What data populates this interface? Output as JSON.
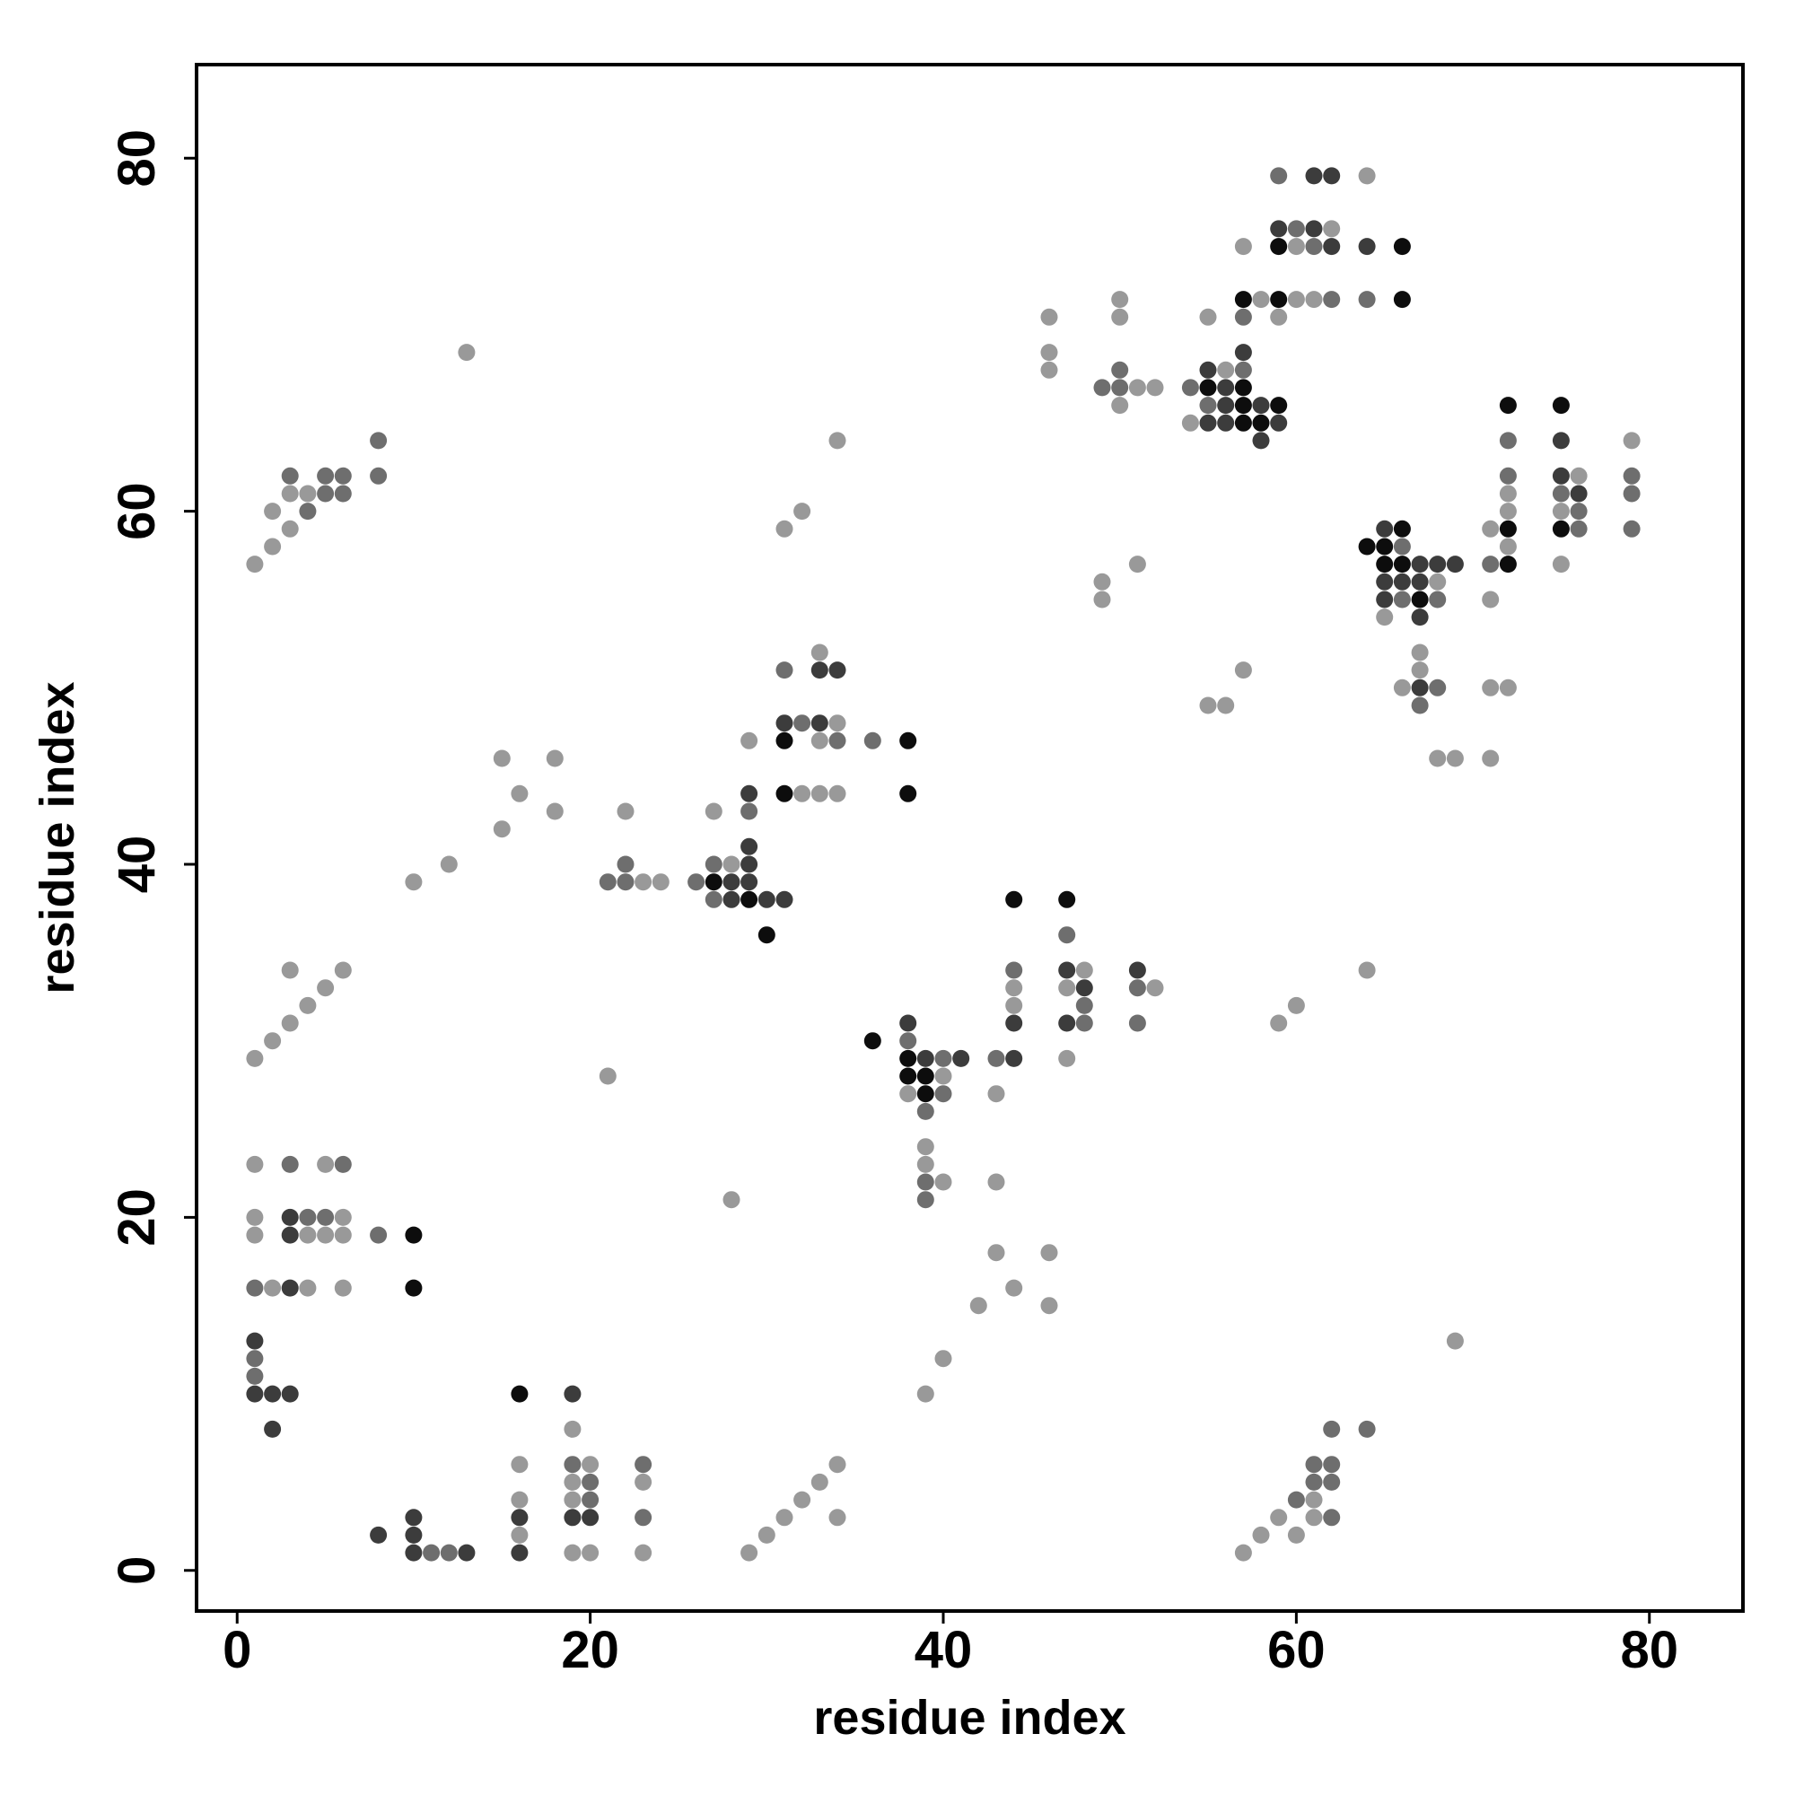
{
  "chart_data": {
    "type": "scatter",
    "title": "",
    "xlabel": "residue index",
    "ylabel": "residue index",
    "xlim": [
      -2.3,
      85.3
    ],
    "ylim": [
      -2.3,
      85.3
    ],
    "xticks": [
      0,
      20,
      40,
      60,
      80
    ],
    "yticks": [
      0,
      20,
      40,
      60,
      80
    ],
    "grid": false,
    "legend": "none",
    "colors": {
      "level1": "#999999",
      "level2": "#6e6e6e",
      "level3": "#3c3c3c",
      "level4": "#0d0d0d"
    },
    "points": [
      [
        1,
        57,
        1
      ],
      [
        2,
        58,
        1
      ],
      [
        2,
        60,
        1
      ],
      [
        3,
        59,
        1
      ],
      [
        3,
        61,
        1
      ],
      [
        3,
        62,
        2
      ],
      [
        4,
        60,
        2
      ],
      [
        4,
        61,
        1
      ],
      [
        5,
        61,
        2
      ],
      [
        5,
        62,
        2
      ],
      [
        6,
        61,
        2
      ],
      [
        6,
        62,
        2
      ],
      [
        8,
        62,
        2
      ],
      [
        8,
        64,
        2
      ],
      [
        1,
        29,
        1
      ],
      [
        2,
        30,
        1
      ],
      [
        3,
        31,
        1
      ],
      [
        3,
        34,
        1
      ],
      [
        4,
        32,
        1
      ],
      [
        5,
        33,
        1
      ],
      [
        6,
        34,
        1
      ],
      [
        1,
        23,
        1
      ],
      [
        1,
        20,
        1
      ],
      [
        1,
        19,
        1
      ],
      [
        1,
        16,
        2
      ],
      [
        2,
        16,
        1
      ],
      [
        3,
        23,
        2
      ],
      [
        3,
        20,
        3
      ],
      [
        3,
        19,
        3
      ],
      [
        3,
        16,
        3
      ],
      [
        4,
        20,
        2
      ],
      [
        4,
        19,
        1
      ],
      [
        4,
        16,
        1
      ],
      [
        5,
        23,
        1
      ],
      [
        5,
        20,
        2
      ],
      [
        5,
        19,
        1
      ],
      [
        6,
        23,
        2
      ],
      [
        6,
        20,
        1
      ],
      [
        6,
        19,
        1
      ],
      [
        6,
        16,
        1
      ],
      [
        8,
        19,
        2
      ],
      [
        10,
        19,
        4
      ],
      [
        10,
        16,
        4
      ],
      [
        1,
        13,
        3
      ],
      [
        1,
        12,
        2
      ],
      [
        1,
        11,
        2
      ],
      [
        1,
        10,
        3
      ],
      [
        2,
        10,
        3
      ],
      [
        2,
        8,
        3
      ],
      [
        3,
        10,
        3
      ],
      [
        8,
        2,
        3
      ],
      [
        10,
        3,
        3
      ],
      [
        10,
        2,
        3
      ],
      [
        10,
        1,
        3
      ],
      [
        11,
        1,
        2
      ],
      [
        12,
        1,
        2
      ],
      [
        13,
        1,
        3
      ],
      [
        16,
        10,
        4
      ],
      [
        16,
        6,
        1
      ],
      [
        16,
        4,
        1
      ],
      [
        16,
        3,
        3
      ],
      [
        16,
        2,
        1
      ],
      [
        16,
        1,
        3
      ],
      [
        19,
        10,
        3
      ],
      [
        19,
        8,
        1
      ],
      [
        19,
        6,
        2
      ],
      [
        19,
        5,
        1
      ],
      [
        19,
        4,
        1
      ],
      [
        19,
        3,
        3
      ],
      [
        19,
        1,
        1
      ],
      [
        20,
        6,
        1
      ],
      [
        20,
        5,
        2
      ],
      [
        20,
        4,
        2
      ],
      [
        20,
        3,
        3
      ],
      [
        20,
        1,
        1
      ],
      [
        23,
        6,
        2
      ],
      [
        23,
        5,
        1
      ],
      [
        23,
        3,
        2
      ],
      [
        23,
        1,
        1
      ],
      [
        29,
        1,
        1
      ],
      [
        30,
        2,
        1
      ],
      [
        31,
        3,
        1
      ],
      [
        32,
        4,
        1
      ],
      [
        33,
        5,
        1
      ],
      [
        34,
        6,
        1
      ],
      [
        34,
        3,
        1
      ],
      [
        13,
        69,
        1
      ],
      [
        10,
        39,
        1
      ],
      [
        12,
        40,
        1
      ],
      [
        15,
        46,
        1
      ],
      [
        15,
        42,
        1
      ],
      [
        16,
        44,
        1
      ],
      [
        18,
        46,
        1
      ],
      [
        18,
        43,
        1
      ],
      [
        21,
        28,
        1
      ],
      [
        28,
        21,
        1
      ],
      [
        21,
        39,
        2
      ],
      [
        22,
        43,
        1
      ],
      [
        22,
        40,
        2
      ],
      [
        22,
        39,
        2
      ],
      [
        23,
        39,
        1
      ],
      [
        24,
        39,
        1
      ],
      [
        26,
        39,
        2
      ],
      [
        27,
        43,
        1
      ],
      [
        27,
        40,
        2
      ],
      [
        27,
        39,
        4
      ],
      [
        27,
        38,
        2
      ],
      [
        28,
        40,
        1
      ],
      [
        28,
        39,
        3
      ],
      [
        28,
        38,
        3
      ],
      [
        29,
        44,
        3
      ],
      [
        29,
        43,
        2
      ],
      [
        29,
        41,
        3
      ],
      [
        29,
        40,
        3
      ],
      [
        29,
        39,
        3
      ],
      [
        29,
        38,
        4
      ],
      [
        30,
        38,
        3
      ],
      [
        30,
        36,
        4
      ],
      [
        31,
        38,
        3
      ],
      [
        29,
        47,
        1
      ],
      [
        31,
        51,
        2
      ],
      [
        31,
        48,
        3
      ],
      [
        31,
        47,
        4
      ],
      [
        31,
        44,
        4
      ],
      [
        32,
        48,
        2
      ],
      [
        32,
        44,
        1
      ],
      [
        33,
        52,
        1
      ],
      [
        33,
        51,
        3
      ],
      [
        33,
        48,
        3
      ],
      [
        33,
        47,
        1
      ],
      [
        33,
        44,
        1
      ],
      [
        34,
        51,
        3
      ],
      [
        34,
        48,
        1
      ],
      [
        34,
        47,
        2
      ],
      [
        34,
        44,
        1
      ],
      [
        34,
        64,
        1
      ],
      [
        31,
        59,
        1
      ],
      [
        32,
        60,
        1
      ],
      [
        36,
        47,
        2
      ],
      [
        38,
        47,
        4
      ],
      [
        38,
        44,
        4
      ],
      [
        36,
        30,
        4
      ],
      [
        38,
        31,
        3
      ],
      [
        38,
        30,
        2
      ],
      [
        38,
        29,
        4
      ],
      [
        38,
        28,
        4
      ],
      [
        38,
        27,
        1
      ],
      [
        39,
        29,
        3
      ],
      [
        39,
        28,
        4
      ],
      [
        39,
        27,
        4
      ],
      [
        39,
        26,
        2
      ],
      [
        40,
        29,
        2
      ],
      [
        40,
        28,
        1
      ],
      [
        40,
        27,
        2
      ],
      [
        41,
        29,
        3
      ],
      [
        39,
        24,
        1
      ],
      [
        39,
        23,
        1
      ],
      [
        39,
        22,
        2
      ],
      [
        39,
        21,
        2
      ],
      [
        40,
        22,
        1
      ],
      [
        43,
        27,
        1
      ],
      [
        43,
        22,
        1
      ],
      [
        43,
        29,
        2
      ],
      [
        39,
        10,
        1
      ],
      [
        40,
        12,
        1
      ],
      [
        42,
        15,
        1
      ],
      [
        43,
        18,
        1
      ],
      [
        44,
        16,
        1
      ],
      [
        46,
        18,
        1
      ],
      [
        46,
        15,
        1
      ],
      [
        44,
        38,
        4
      ],
      [
        44,
        34,
        2
      ],
      [
        44,
        33,
        1
      ],
      [
        44,
        32,
        1
      ],
      [
        44,
        31,
        3
      ],
      [
        44,
        29,
        3
      ],
      [
        47,
        38,
        4
      ],
      [
        47,
        36,
        2
      ],
      [
        47,
        34,
        3
      ],
      [
        47,
        33,
        1
      ],
      [
        47,
        31,
        3
      ],
      [
        47,
        29,
        1
      ],
      [
        48,
        34,
        1
      ],
      [
        48,
        33,
        3
      ],
      [
        48,
        32,
        2
      ],
      [
        48,
        31,
        2
      ],
      [
        51,
        34,
        3
      ],
      [
        51,
        33,
        2
      ],
      [
        51,
        31,
        2
      ],
      [
        52,
        33,
        1
      ],
      [
        46,
        71,
        1
      ],
      [
        46,
        69,
        1
      ],
      [
        46,
        68,
        1
      ],
      [
        49,
        67,
        2
      ],
      [
        49,
        56,
        1
      ],
      [
        49,
        55,
        1
      ],
      [
        50,
        72,
        1
      ],
      [
        50,
        71,
        1
      ],
      [
        50,
        68,
        2
      ],
      [
        50,
        67,
        2
      ],
      [
        50,
        66,
        1
      ],
      [
        51,
        67,
        1
      ],
      [
        51,
        57,
        1
      ],
      [
        52,
        67,
        1
      ],
      [
        54,
        67,
        2
      ],
      [
        54,
        65,
        1
      ],
      [
        55,
        71,
        1
      ],
      [
        55,
        68,
        3
      ],
      [
        55,
        67,
        4
      ],
      [
        55,
        66,
        2
      ],
      [
        55,
        65,
        3
      ],
      [
        55,
        49,
        1
      ],
      [
        56,
        68,
        1
      ],
      [
        56,
        67,
        3
      ],
      [
        56,
        66,
        3
      ],
      [
        56,
        65,
        3
      ],
      [
        56,
        49,
        1
      ],
      [
        57,
        75,
        1
      ],
      [
        57,
        72,
        4
      ],
      [
        57,
        71,
        2
      ],
      [
        57,
        69,
        3
      ],
      [
        57,
        68,
        2
      ],
      [
        57,
        67,
        4
      ],
      [
        57,
        66,
        4
      ],
      [
        57,
        65,
        4
      ],
      [
        57,
        51,
        1
      ],
      [
        58,
        72,
        1
      ],
      [
        58,
        66,
        3
      ],
      [
        58,
        65,
        4
      ],
      [
        58,
        64,
        3
      ],
      [
        59,
        79,
        2
      ],
      [
        59,
        76,
        3
      ],
      [
        59,
        75,
        4
      ],
      [
        59,
        72,
        4
      ],
      [
        59,
        71,
        1
      ],
      [
        59,
        66,
        4
      ],
      [
        59,
        65,
        3
      ],
      [
        60,
        76,
        2
      ],
      [
        60,
        75,
        1
      ],
      [
        60,
        72,
        1
      ],
      [
        61,
        79,
        3
      ],
      [
        61,
        76,
        3
      ],
      [
        61,
        75,
        2
      ],
      [
        61,
        72,
        1
      ],
      [
        62,
        79,
        3
      ],
      [
        62,
        76,
        1
      ],
      [
        62,
        75,
        3
      ],
      [
        62,
        72,
        2
      ],
      [
        64,
        79,
        1
      ],
      [
        64,
        75,
        3
      ],
      [
        64,
        72,
        2
      ],
      [
        66,
        75,
        4
      ],
      [
        66,
        72,
        4
      ],
      [
        64,
        58,
        4
      ],
      [
        65,
        59,
        3
      ],
      [
        65,
        58,
        4
      ],
      [
        65,
        57,
        4
      ],
      [
        65,
        56,
        3
      ],
      [
        65,
        55,
        3
      ],
      [
        65,
        54,
        1
      ],
      [
        66,
        59,
        4
      ],
      [
        66,
        58,
        2
      ],
      [
        66,
        57,
        4
      ],
      [
        66,
        56,
        3
      ],
      [
        66,
        55,
        2
      ],
      [
        66,
        50,
        1
      ],
      [
        67,
        57,
        3
      ],
      [
        67,
        56,
        3
      ],
      [
        67,
        55,
        4
      ],
      [
        67,
        54,
        3
      ],
      [
        67,
        52,
        1
      ],
      [
        67,
        51,
        1
      ],
      [
        67,
        50,
        3
      ],
      [
        67,
        49,
        2
      ],
      [
        68,
        57,
        3
      ],
      [
        68,
        56,
        1
      ],
      [
        68,
        55,
        2
      ],
      [
        68,
        50,
        2
      ],
      [
        68,
        46,
        1
      ],
      [
        69,
        57,
        3
      ],
      [
        69,
        46,
        1
      ],
      [
        59,
        31,
        1
      ],
      [
        60,
        32,
        1
      ],
      [
        64,
        34,
        1
      ],
      [
        69,
        13,
        1
      ],
      [
        71,
        59,
        1
      ],
      [
        71,
        57,
        2
      ],
      [
        71,
        55,
        1
      ],
      [
        71,
        50,
        1
      ],
      [
        71,
        46,
        1
      ],
      [
        72,
        66,
        4
      ],
      [
        72,
        64,
        2
      ],
      [
        72,
        62,
        2
      ],
      [
        72,
        61,
        1
      ],
      [
        72,
        60,
        1
      ],
      [
        72,
        59,
        4
      ],
      [
        72,
        58,
        1
      ],
      [
        72,
        57,
        4
      ],
      [
        72,
        50,
        1
      ],
      [
        75,
        66,
        4
      ],
      [
        75,
        64,
        3
      ],
      [
        75,
        62,
        3
      ],
      [
        75,
        61,
        2
      ],
      [
        75,
        60,
        1
      ],
      [
        75,
        59,
        4
      ],
      [
        75,
        57,
        1
      ],
      [
        76,
        62,
        1
      ],
      [
        76,
        61,
        3
      ],
      [
        76,
        60,
        2
      ],
      [
        76,
        59,
        2
      ],
      [
        79,
        64,
        1
      ],
      [
        79,
        62,
        2
      ],
      [
        79,
        61,
        2
      ],
      [
        79,
        59,
        2
      ],
      [
        57,
        1,
        1
      ],
      [
        58,
        2,
        1
      ],
      [
        59,
        3,
        1
      ],
      [
        60,
        4,
        2
      ],
      [
        60,
        2,
        1
      ],
      [
        61,
        6,
        2
      ],
      [
        61,
        5,
        2
      ],
      [
        61,
        4,
        1
      ],
      [
        61,
        3,
        1
      ],
      [
        62,
        8,
        2
      ],
      [
        62,
        6,
        2
      ],
      [
        62,
        5,
        2
      ],
      [
        62,
        3,
        2
      ],
      [
        64,
        8,
        2
      ]
    ]
  }
}
